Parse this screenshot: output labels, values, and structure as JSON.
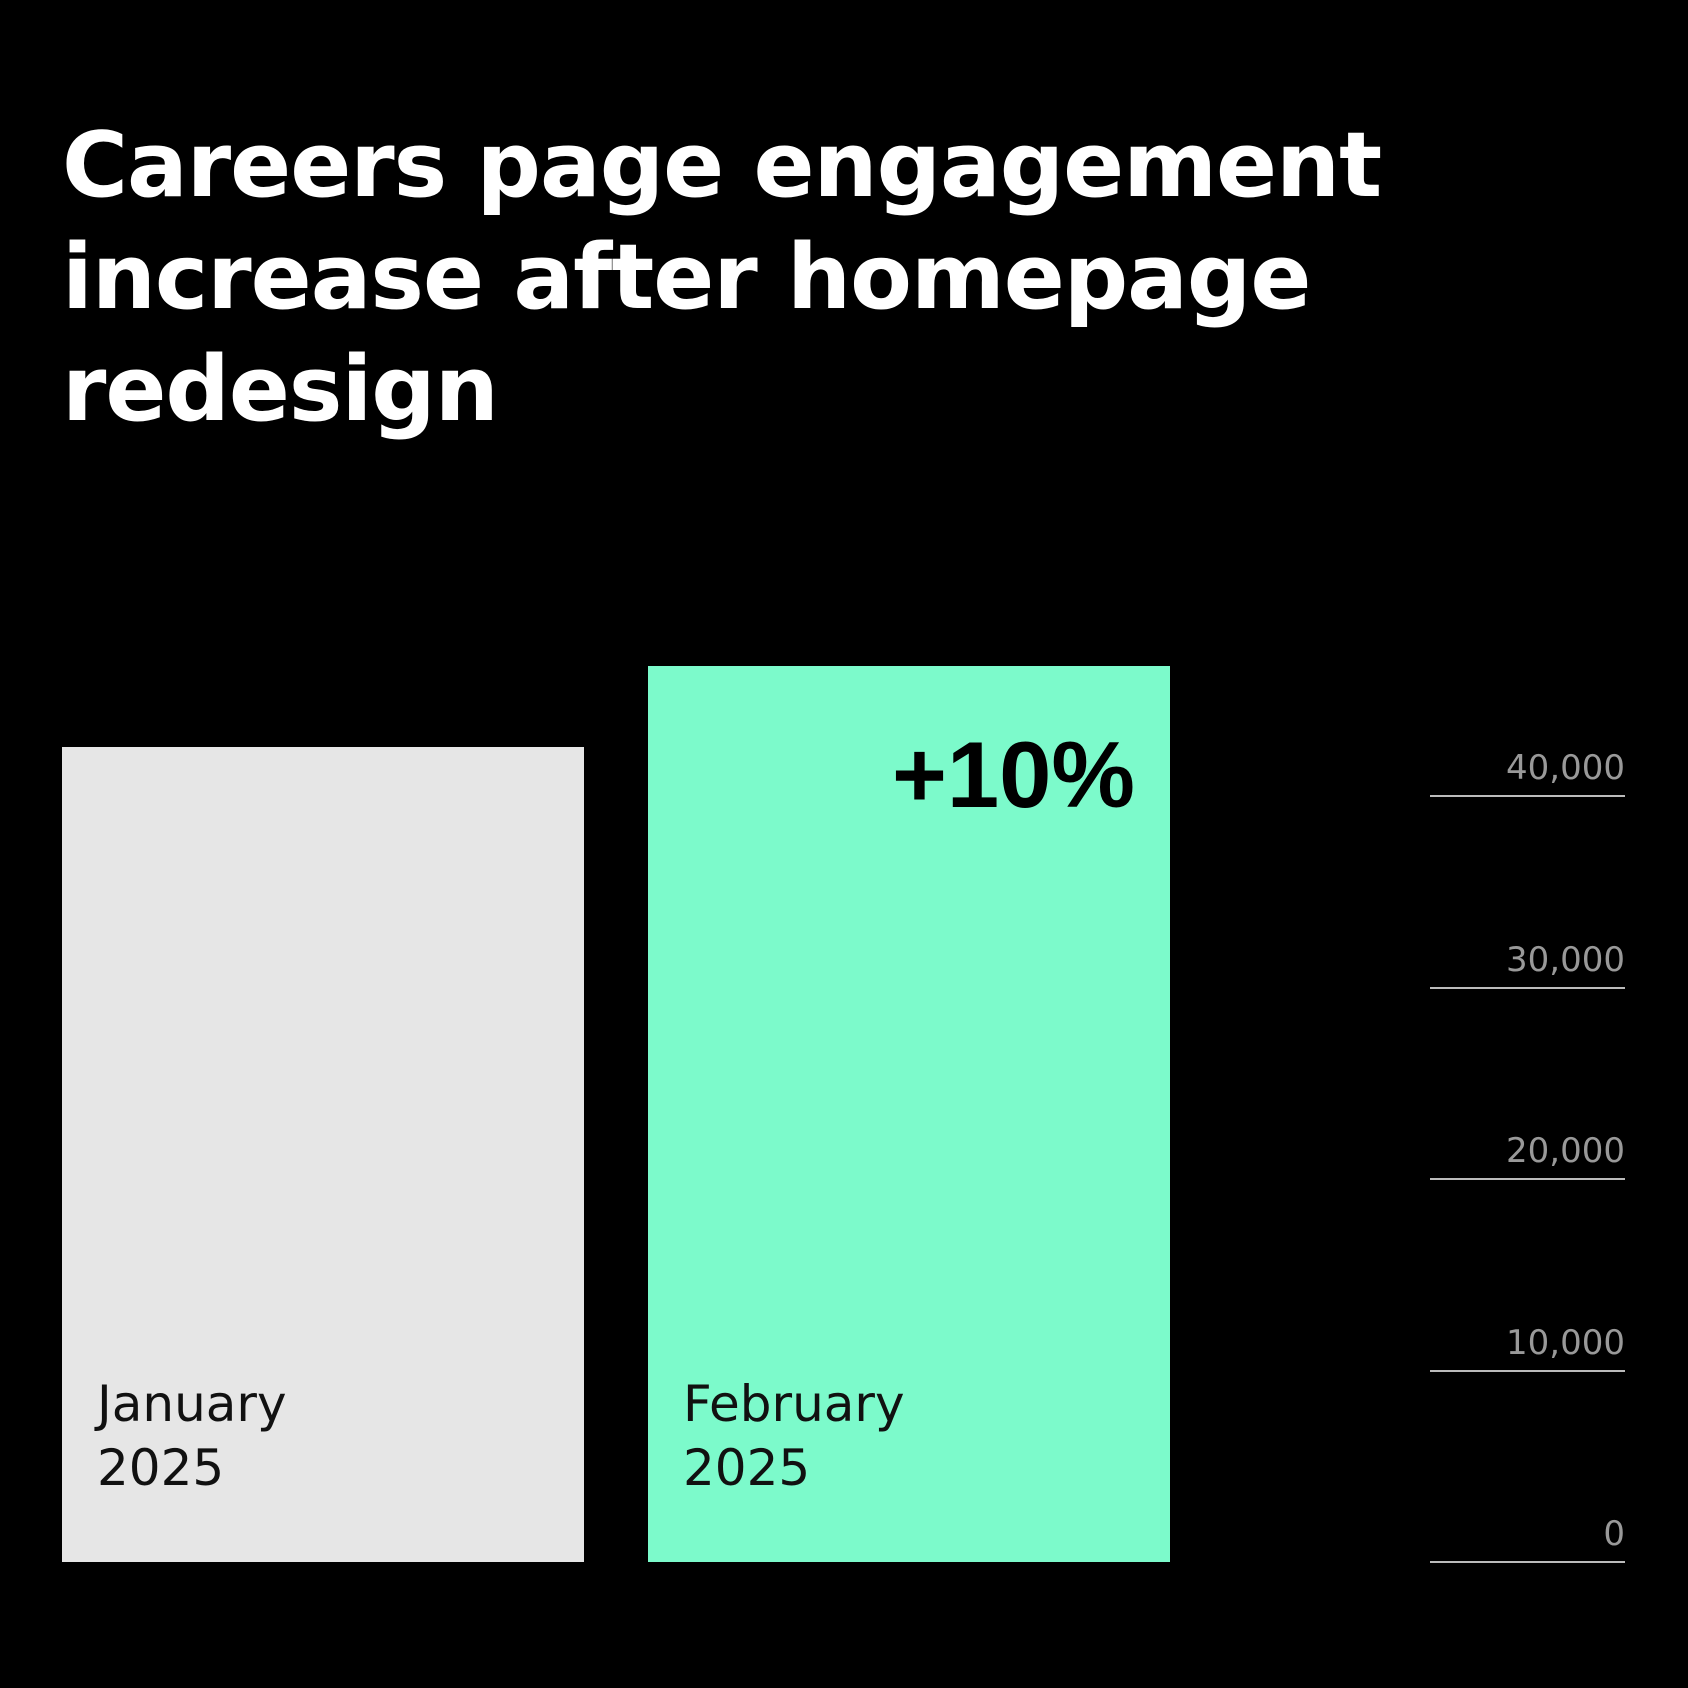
{
  "chart_data": {
    "type": "bar",
    "title": "Careers page engagement increase after homepage redesign",
    "annotation": "+10%",
    "categories": [
      "January 2025",
      "February 2025"
    ],
    "values": [
      42600,
      46800
    ],
    "colors": [
      "#e6e6e6",
      "#7cfacb"
    ],
    "ylim": [
      0,
      50000
    ],
    "yticks": [
      0,
      {
        "value": 10000,
        "label": "10,000"
      },
      {
        "value": 20000,
        "label": "20,000"
      },
      {
        "value": 30000,
        "label": "30,000"
      },
      {
        "value": 40000,
        "label": "40,000"
      }
    ],
    "grid": true
  }
}
